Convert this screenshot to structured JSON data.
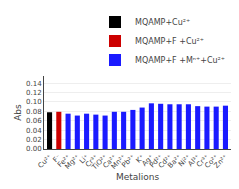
{
  "chart_data": {
    "type": "bar",
    "categories": [
      "Cu²⁺",
      "F⁻",
      "Fe²⁺",
      "Mg²⁺",
      "Li⁺",
      "Cr³⁺",
      "TiO²⁺",
      "Ca²⁺",
      "Mn²⁺",
      "Pb²⁺",
      "K⁺",
      "Ag⁺",
      "Pd²⁺",
      "Cd²⁺",
      "Ba²⁺",
      "Ni²⁺",
      "Al³⁺",
      "Cr³⁺",
      "Co²⁺",
      "Zn²⁺"
    ],
    "series": [
      {
        "name": "MQAMP+Cu²⁺",
        "color": "#000000",
        "values": [
          0.078,
          null,
          null,
          null,
          null,
          null,
          null,
          null,
          null,
          null,
          null,
          null,
          null,
          null,
          null,
          null,
          null,
          null,
          null,
          null
        ]
      },
      {
        "name": "MQAMP+F +Cu²⁺",
        "color": "#cc0000",
        "values": [
          null,
          0.079,
          null,
          null,
          null,
          null,
          null,
          null,
          null,
          null,
          null,
          null,
          null,
          null,
          null,
          null,
          null,
          null,
          null,
          null
        ]
      },
      {
        "name": "MQAMP+F +Mⁿ⁺+Cu²⁺",
        "color": "#1a1aff",
        "values": [
          null,
          null,
          0.075,
          0.071,
          0.075,
          0.073,
          0.071,
          0.079,
          0.079,
          0.083,
          0.088,
          0.097,
          0.096,
          0.095,
          0.095,
          0.095,
          0.091,
          0.09,
          0.09,
          0.092
        ]
      }
    ],
    "xlabel": "Metalions",
    "ylabel": "Abs",
    "ylim": [
      0.0,
      0.155
    ],
    "yticks": [
      {
        "value": 0.0,
        "label": "0.00"
      },
      0.02,
      0.04,
      0.06,
      0.08,
      {
        "value": 0.1,
        "label": "0.10"
      },
      0.12,
      0.14
    ],
    "grid": true,
    "legend": "upper right"
  }
}
